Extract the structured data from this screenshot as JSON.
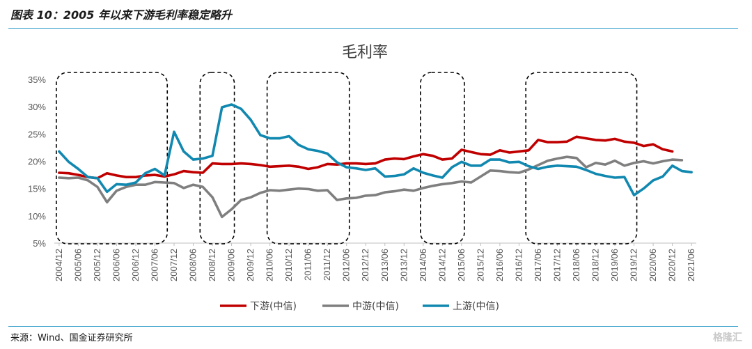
{
  "figure_title": "图表 10：2005 年以来下游毛利率稳定略升",
  "source_text": "来源：Wind、国金证券研究所",
  "watermark_text": "格隆汇",
  "chart_data": {
    "type": "line",
    "title": "毛利率",
    "xlabel": "",
    "ylabel": "",
    "ylim": [
      5,
      35
    ],
    "yticks": [
      "5%",
      "10%",
      "15%",
      "20%",
      "25%",
      "30%",
      "35%"
    ],
    "grid": false,
    "legend_position": "bottom",
    "x_tick_labels": [
      "2004/12",
      "2005/06",
      "2005/12",
      "2006/06",
      "2006/12",
      "2007/06",
      "2007/12",
      "2008/06",
      "2008/12",
      "2009/06",
      "2009/12",
      "2010/06",
      "2010/12",
      "2011/06",
      "2011/12",
      "2012/06",
      "2012/12",
      "2013/06",
      "2013/12",
      "2014/06",
      "2014/12",
      "2015/06",
      "2015/12",
      "2016/06",
      "2016/12",
      "2017/06",
      "2017/12",
      "2018/06",
      "2018/12",
      "2019/06",
      "2019/12",
      "2020/06",
      "2020/12",
      "2021/06"
    ],
    "x_start": "2004/12",
    "x_step": "quarter",
    "series": [
      {
        "name": "下游(中信)",
        "color": "#c00000",
        "values": [
          17.9,
          17.8,
          17.5,
          17.1,
          16.9,
          17.8,
          17.4,
          17.1,
          17.1,
          17.4,
          17.5,
          17.2,
          17.6,
          18.2,
          18.0,
          17.9,
          19.6,
          19.5,
          19.5,
          19.6,
          19.5,
          19.3,
          19.0,
          19.1,
          19.2,
          19.0,
          18.6,
          18.9,
          19.5,
          19.4,
          19.6,
          19.6,
          19.5,
          19.6,
          20.3,
          20.5,
          20.4,
          20.9,
          21.3,
          21.0,
          20.3,
          20.5,
          22.1,
          21.7,
          21.3,
          21.2,
          22.0,
          21.6,
          21.8,
          22.0,
          23.9,
          23.5,
          23.5,
          23.6,
          24.5,
          24.2,
          23.9,
          23.8,
          24.1,
          23.6,
          23.4,
          22.8,
          23.1,
          22.2,
          21.8
        ]
      },
      {
        "name": "中游(中信)",
        "color": "#7f7f7f",
        "values": [
          17.0,
          16.9,
          17.0,
          16.5,
          15.3,
          12.5,
          14.6,
          15.3,
          15.7,
          15.7,
          16.2,
          16.1,
          16.0,
          15.1,
          15.7,
          15.3,
          13.4,
          9.8,
          11.2,
          12.9,
          13.4,
          14.2,
          14.7,
          14.6,
          14.8,
          15.0,
          14.9,
          14.6,
          14.7,
          12.9,
          13.2,
          13.3,
          13.7,
          13.8,
          14.3,
          14.5,
          14.8,
          14.6,
          15.1,
          15.5,
          15.8,
          16.0,
          16.3,
          16.1,
          17.2,
          18.3,
          18.2,
          18.0,
          17.9,
          18.5,
          19.3,
          20.1,
          20.5,
          20.8,
          20.6,
          18.9,
          19.7,
          19.4,
          20.1,
          19.2,
          19.7,
          20.0,
          19.6,
          20.0,
          20.3,
          20.2
        ]
      },
      {
        "name": "上游(中信)",
        "color": "#1188b0",
        "values": [
          21.8,
          19.9,
          18.6,
          17.1,
          16.9,
          14.4,
          15.8,
          15.7,
          16.1,
          17.8,
          18.6,
          17.4,
          25.4,
          21.8,
          20.3,
          20.5,
          21.0,
          29.9,
          30.4,
          29.6,
          27.6,
          24.8,
          24.2,
          24.2,
          24.6,
          23.0,
          22.2,
          21.9,
          21.4,
          19.8,
          18.9,
          18.7,
          18.4,
          18.7,
          17.2,
          17.3,
          17.6,
          18.7,
          17.9,
          17.4,
          17.0,
          18.9,
          19.9,
          19.2,
          19.2,
          20.3,
          20.3,
          19.8,
          19.9,
          19.1,
          18.6,
          19.0,
          19.2,
          19.1,
          19.0,
          18.4,
          17.7,
          17.3,
          17.0,
          17.1,
          13.8,
          15.0,
          16.5,
          17.2,
          19.2,
          18.2,
          18.0
        ]
      }
    ],
    "highlight_periods": [
      {
        "from": 0,
        "to": 11
      },
      {
        "from": 15,
        "to": 18
      },
      {
        "from": 22,
        "to": 30
      },
      {
        "from": 38,
        "to": 42
      },
      {
        "from": 49,
        "to": 60
      }
    ]
  }
}
